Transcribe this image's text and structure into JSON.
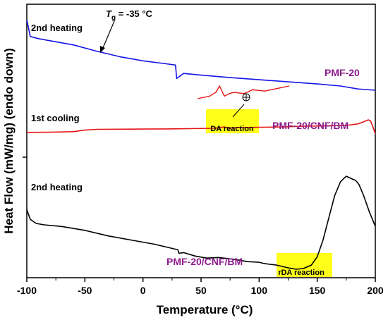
{
  "chart_data": {
    "type": "line",
    "title": "",
    "xlabel": "Temperature (°C)",
    "ylabel": "Heat Flow (mW/mg) (endo down)",
    "xlim": [
      -100,
      200
    ],
    "xticks": [
      -100,
      -50,
      0,
      50,
      100,
      150,
      200
    ],
    "yticks_labeled": false,
    "grid": false,
    "series": [
      {
        "name": "PMF-20",
        "color": "#1515e6",
        "x": [
          -100,
          -97,
          -90,
          -80,
          -60,
          -40,
          -20,
          0,
          20,
          28,
          29,
          31,
          35,
          50,
          75,
          100,
          125,
          150,
          170,
          185,
          200
        ],
        "y": [
          1.0,
          0.96,
          0.955,
          0.95,
          0.94,
          0.925,
          0.912,
          0.902,
          0.895,
          0.892,
          0.86,
          0.864,
          0.872,
          0.868,
          0.862,
          0.857,
          0.852,
          0.847,
          0.842,
          0.835,
          0.832
        ]
      },
      {
        "name": "PMF-20/CNF/BM",
        "color": "#e61515",
        "x": [
          -100,
          -80,
          -60,
          -50,
          -40,
          -20,
          0,
          20,
          40,
          60,
          65,
          70,
          75,
          80,
          100,
          120,
          140,
          160,
          175,
          185,
          190,
          194,
          196,
          198,
          200
        ],
        "y": [
          0.57,
          0.572,
          0.58,
          0.6,
          0.61,
          0.612,
          0.614,
          0.616,
          0.62,
          0.624,
          0.63,
          0.642,
          0.627,
          0.632,
          0.637,
          0.642,
          0.652,
          0.658,
          0.662,
          0.682,
          0.71,
          0.736,
          0.72,
          0.64,
          0.55
        ]
      },
      {
        "name": "PMF-20/CNF/BM",
        "color": "#000000",
        "x": [
          -100,
          -97,
          -92,
          -85,
          -70,
          -50,
          -30,
          -10,
          10,
          25,
          30,
          31,
          35,
          45,
          55,
          65,
          80,
          90,
          100,
          105,
          115,
          125,
          132,
          138,
          145,
          150,
          155,
          160,
          165,
          170,
          175,
          180,
          183,
          186,
          190,
          195,
          200
        ],
        "y": [
          0.42,
          0.35,
          0.32,
          0.31,
          0.298,
          0.27,
          0.23,
          0.2,
          0.17,
          0.14,
          0.13,
          0.105,
          0.11,
          0.085,
          0.07,
          0.075,
          0.06,
          0.045,
          0.04,
          0.03,
          0.02,
          0.0,
          -0.01,
          -0.005,
          0.02,
          0.08,
          0.2,
          0.36,
          0.52,
          0.62,
          0.66,
          0.64,
          0.63,
          0.6,
          0.52,
          0.4,
          0.3
        ]
      }
    ],
    "inset_curve": {
      "color": "#e61515",
      "x": [
        50,
        60,
        65,
        68,
        72,
        76,
        80,
        88,
        95,
        105,
        115,
        125
      ],
      "y": [
        0.0,
        0.02,
        0.05,
        0.1,
        0.02,
        0.04,
        0.05,
        0.04,
        0.07,
        0.06,
        0.08,
        0.1
      ]
    },
    "annotations": {
      "blue_heating": "2nd heating",
      "tg_symbol": "T",
      "tg_sub": "g",
      "tg_value": " = -35 °C",
      "pmf20_label": "PMF-20",
      "cooling": "1st cooling",
      "pmf_cnf_bm_red": "PMF-20/CNF/BM",
      "da_reaction": "DA reaction",
      "black_heating": "2nd heating",
      "pmf_cnf_bm_black": "PMF-20/CNF/BM",
      "rda_reaction": "rDA reaction"
    },
    "highlight_color": "#ffff1a"
  }
}
